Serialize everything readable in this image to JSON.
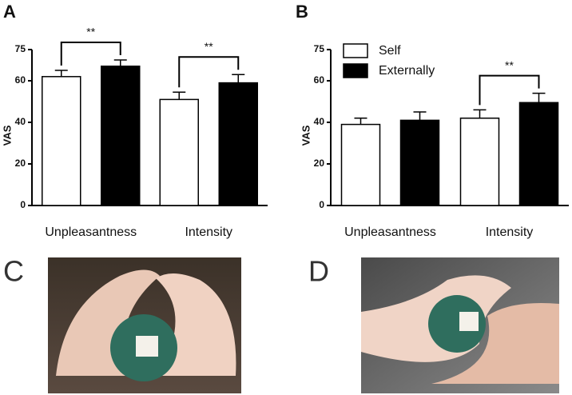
{
  "chart_data": [
    {
      "type": "bar",
      "panel": "A",
      "y_label": "VAS",
      "categories": [
        "Unpleasantness",
        "Intensity"
      ],
      "series": [
        {
          "name": "Self",
          "color": "#ffffff",
          "values": [
            62,
            51
          ],
          "errors": [
            3,
            3.5
          ]
        },
        {
          "name": "Externally",
          "color": "#000000",
          "values": [
            67,
            59
          ],
          "errors": [
            3,
            4
          ]
        }
      ],
      "ylim": [
        0,
        75
      ],
      "yticks": [
        0,
        20,
        40,
        60,
        75
      ],
      "legend": false,
      "significance": [
        {
          "text": "**",
          "category": "Unpleasantness"
        },
        {
          "text": "**",
          "category": "Intensity"
        }
      ]
    },
    {
      "type": "bar",
      "panel": "B",
      "y_label": "VAS",
      "categories": [
        "Unpleasantness",
        "Intensity"
      ],
      "series": [
        {
          "name": "Self",
          "color": "#ffffff",
          "values": [
            39,
            42
          ],
          "errors": [
            3,
            4
          ]
        },
        {
          "name": "Externally",
          "color": "#000000",
          "values": [
            41,
            49.5
          ],
          "errors": [
            4,
            4.5
          ]
        }
      ],
      "ylim": [
        0,
        75
      ],
      "yticks": [
        0,
        20,
        40,
        60,
        75
      ],
      "legend": true,
      "significance": [
        {
          "text": "**",
          "category": "Intensity"
        }
      ]
    }
  ],
  "photos": [
    {
      "label": "C"
    },
    {
      "label": "D"
    }
  ]
}
